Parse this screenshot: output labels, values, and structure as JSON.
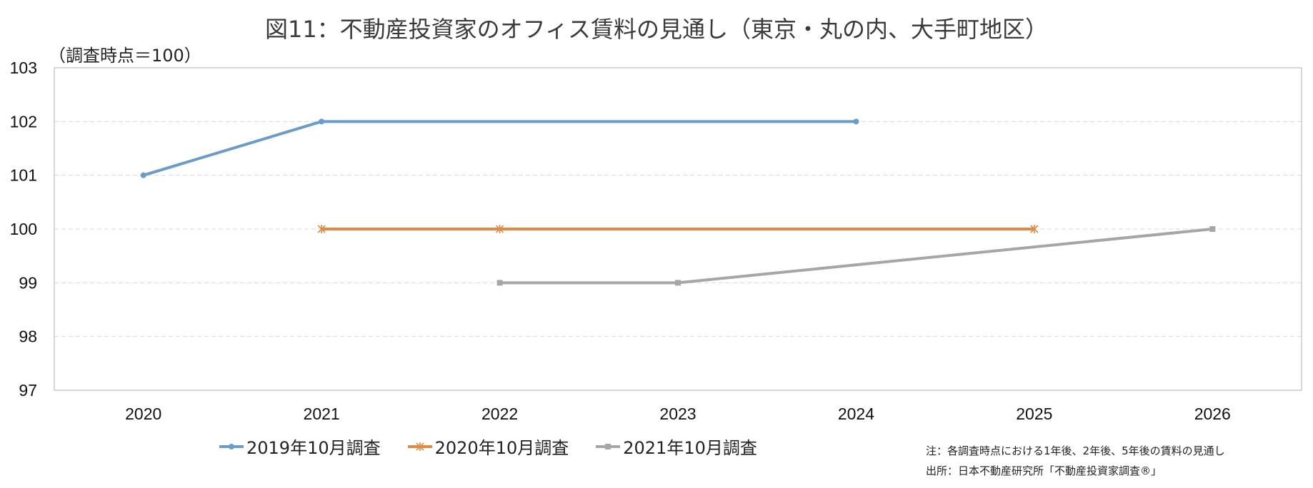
{
  "title": "図11：不動産投資家のオフィス賃料の見通し（東京・丸の内、大手町地区）",
  "unit_label": "（調査時点＝100）",
  "notes": {
    "note": "注：各調査時点における1年後、2年後、5年後の賃料の見通し",
    "source": "出所：日本不動産研究所「不動産投資家調査®」"
  },
  "colors": {
    "series_2019": "#6a9cc9",
    "series_2020": "#e08b45",
    "series_2021": "#a6a6a6",
    "grid": "#d9d9d9",
    "axis": "#bfbfbf"
  },
  "chart_data": {
    "type": "line",
    "title": "図11：不動産投資家のオフィス賃料の見通し（東京・丸の内、大手町地区）",
    "ylabel": "（調査時点＝100）",
    "xlabel": "",
    "categories": [
      "2020",
      "2021",
      "2022",
      "2023",
      "2024",
      "2025",
      "2026"
    ],
    "ylim": [
      97,
      103
    ],
    "yticks": [
      97,
      98,
      99,
      100,
      101,
      102,
      103
    ],
    "grid": true,
    "legend_position": "bottom",
    "series": [
      {
        "name": "2019年10月調査",
        "marker": "circle",
        "points": [
          {
            "x": "2020",
            "y": 101
          },
          {
            "x": "2021",
            "y": 102
          },
          {
            "x": "2024",
            "y": 102
          }
        ]
      },
      {
        "name": "2020年10月調査",
        "marker": "asterisk",
        "points": [
          {
            "x": "2021",
            "y": 100
          },
          {
            "x": "2022",
            "y": 100
          },
          {
            "x": "2025",
            "y": 100
          }
        ]
      },
      {
        "name": "2021年10月調査",
        "marker": "square",
        "points": [
          {
            "x": "2022",
            "y": 99
          },
          {
            "x": "2023",
            "y": 99
          },
          {
            "x": "2026",
            "y": 100
          }
        ]
      }
    ]
  }
}
